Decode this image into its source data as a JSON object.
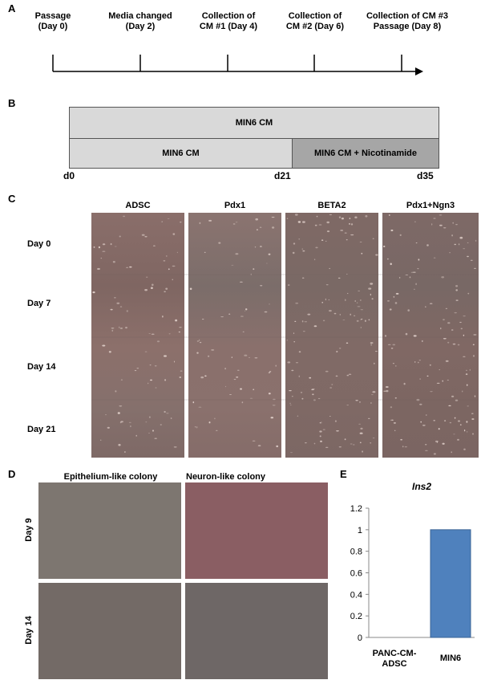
{
  "panelA": {
    "letter": "A",
    "events": [
      {
        "label": "Passage\n(Day 0)"
      },
      {
        "label": "Media changed\n(Day 2)"
      },
      {
        "label": "Collection of\nCM #1 (Day 4)"
      },
      {
        "label": "Collection of\nCM #2 (Day 6)"
      },
      {
        "label": "Collection of CM #3\nPassage (Day 8)"
      }
    ]
  },
  "panelB": {
    "letter": "B",
    "top_bar": "MIN6 CM",
    "bottom_left": "MIN6 CM",
    "bottom_right": "MIN6 CM + Nicotinamide",
    "day_labels": [
      "d0",
      "d21",
      "d35"
    ],
    "colors": {
      "light": "#d9d9d9",
      "dark": "#a6a6a6"
    }
  },
  "panelC": {
    "letter": "C",
    "columns": [
      "ADSC",
      "Pdx1",
      "BETA2",
      "Pdx1+Ngn3"
    ],
    "rows": [
      "Day 0",
      "Day 7",
      "Day 14",
      "Day 21"
    ]
  },
  "panelD": {
    "letter": "D",
    "columns": [
      "Epithelium-like colony",
      "Neuron-like colony"
    ],
    "rows": [
      "Day 9",
      "Day 14"
    ]
  },
  "panelE": {
    "letter": "E",
    "chart_data": {
      "type": "bar",
      "title": "Ins2",
      "categories": [
        "PANC-CM-ADSC",
        "MIN6"
      ],
      "values": [
        0,
        1
      ],
      "ylim": [
        0,
        1.2
      ],
      "yticks": [
        "0",
        "0.2",
        "0.4",
        "0.6",
        "0.8",
        "1",
        "1.2"
      ],
      "bar_color": "#4f81bd"
    }
  }
}
